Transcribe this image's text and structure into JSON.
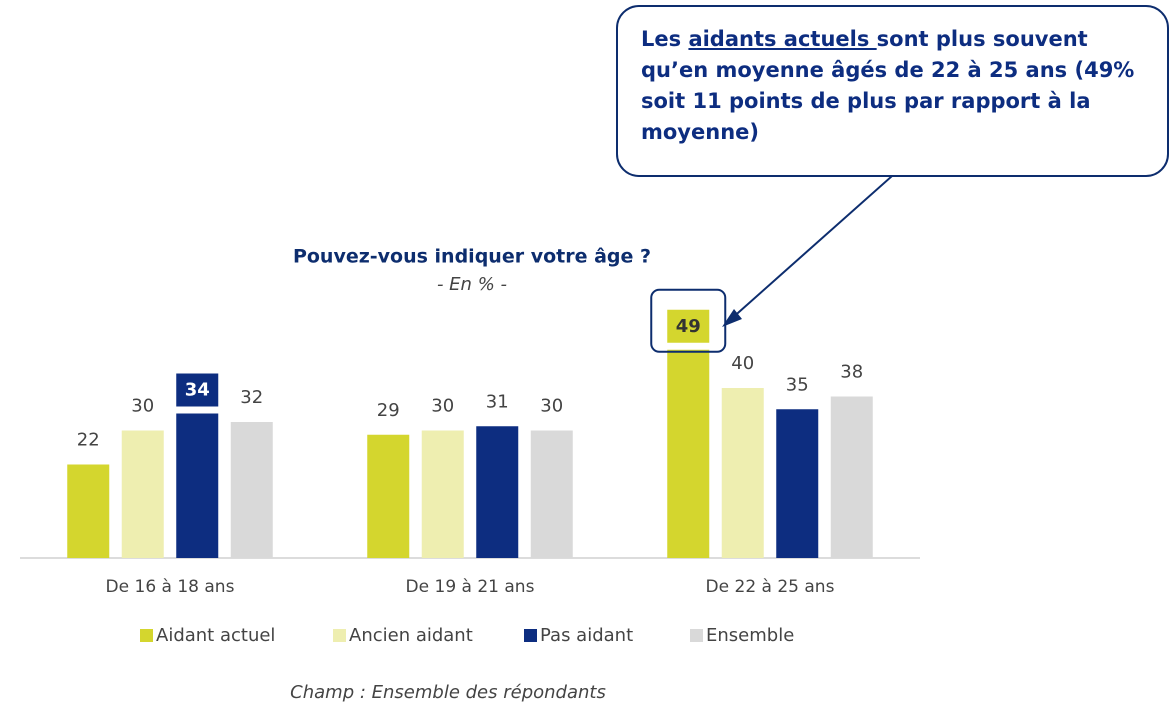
{
  "chart_data": {
    "type": "bar",
    "title": "Pouvez-vous indiquer votre âge ?",
    "subtitle": "- En % -",
    "footnote": "Champ : Ensemble des répondants",
    "annotation": [
      "Les ",
      "aidants actuels ",
      "sont plus souvent qu’en moyenne âgés de 22 à 25 ans (49% soit 11 points de plus par rapport à la moyenne)"
    ],
    "categories": [
      "De 16 à 18 ans",
      "De 19 à 21 ans",
      "De 22 à 25 ans"
    ],
    "series": [
      {
        "name": "Aidant actuel",
        "color": "#d4d62e",
        "values": [
          22,
          29,
          49
        ]
      },
      {
        "name": "Ancien aidant",
        "color": "#eeeeb0",
        "values": [
          30,
          30,
          40
        ]
      },
      {
        "name": "Pas aidant",
        "color": "#0d2d80",
        "values": [
          34,
          31,
          35
        ]
      },
      {
        "name": "Ensemble",
        "color": "#d9d9d9",
        "values": [
          32,
          30,
          38
        ]
      }
    ],
    "ylim": [
      0,
      100
    ]
  }
}
